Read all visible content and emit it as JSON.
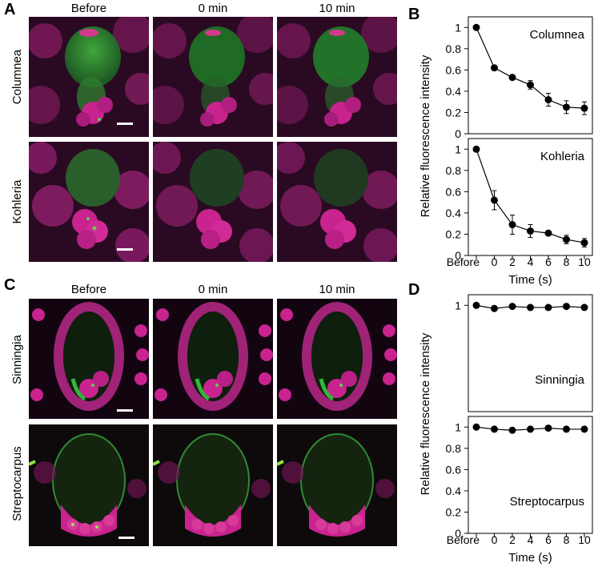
{
  "figure": {
    "panels": {
      "A": "A",
      "B": "B",
      "C": "C",
      "D": "D"
    },
    "micrographs_top": {
      "columns": [
        "Before",
        "0 min",
        "10 min"
      ],
      "rows": [
        "Columnea",
        "Kohleria"
      ]
    },
    "micrographs_bottom": {
      "columns": [
        "Before",
        "0 min",
        "10 min"
      ],
      "rows": [
        "Sinningia",
        "Streptocarpus"
      ]
    },
    "colors": {
      "magenta": "#c8238f",
      "green": "#33b53a",
      "background": "#1c0818"
    }
  },
  "chart_data": [
    {
      "panel": "B",
      "type": "line",
      "ylabel": "Relative fluorescence intensity",
      "xlabel": "Time (s)",
      "categories": [
        "Before",
        "0",
        "2",
        "4",
        "6",
        "8",
        "10"
      ],
      "subplots": [
        {
          "name": "Columnea",
          "ylim": [
            0,
            1.1
          ],
          "yticks": [
            "0",
            "0.2",
            "0.4",
            "0.6",
            "0.8",
            "1"
          ],
          "values": [
            1.0,
            0.62,
            0.53,
            0.46,
            0.32,
            0.25,
            0.24
          ],
          "errors": [
            0.0,
            0.02,
            0.02,
            0.04,
            0.06,
            0.06,
            0.06
          ]
        },
        {
          "name": "Kohleria",
          "ylim": [
            0,
            1.1
          ],
          "yticks": [
            "0",
            "0.2",
            "0.4",
            "0.6",
            "0.8",
            "1"
          ],
          "values": [
            1.0,
            0.52,
            0.29,
            0.23,
            0.21,
            0.15,
            0.12
          ],
          "errors": [
            0.0,
            0.09,
            0.09,
            0.06,
            0.02,
            0.04,
            0.04
          ]
        }
      ]
    },
    {
      "panel": "D",
      "type": "line",
      "ylabel": "Relative fluorescence intensity",
      "xlabel": "Time (s)",
      "categories": [
        "Before",
        "0",
        "2",
        "4",
        "6",
        "8",
        "10"
      ],
      "subplots": [
        {
          "name": "Sinningia",
          "ylim": [
            0.8,
            1.1
          ],
          "yticks": [
            "0.8",
            "0.9",
            "1"
          ],
          "values": [
            1.0,
            0.97,
            0.99,
            0.98,
            0.98,
            0.99,
            0.98
          ],
          "errors": [
            0.0,
            0.01,
            0.01,
            0.01,
            0.01,
            0.01,
            0.01
          ]
        },
        {
          "name": "Streptocarpus",
          "ylim": [
            0,
            1.1
          ],
          "yticks": [
            "0",
            "0.2",
            "0.4",
            "0.6",
            "0.8",
            "1"
          ],
          "values": [
            1.0,
            0.98,
            0.97,
            0.98,
            0.99,
            0.98,
            0.98
          ],
          "errors": [
            0.0,
            0.01,
            0.01,
            0.01,
            0.01,
            0.01,
            0.01
          ]
        }
      ]
    }
  ]
}
